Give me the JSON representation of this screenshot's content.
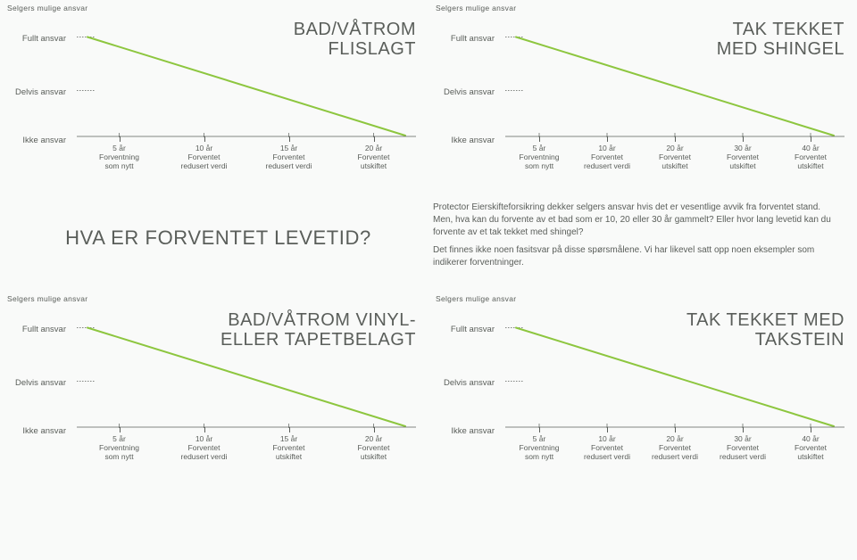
{
  "colors": {
    "background": "#f9faf9",
    "text": "#5a5e5a",
    "line": "#8dc63f",
    "dash": "#5a5e5a",
    "axis": "#5a5e5a"
  },
  "line_width": 2,
  "yAxis": {
    "header": "Selgers mulige ansvar",
    "levels": [
      "Fullt ansvar",
      "Delvis ansvar",
      "Ikke ansvar"
    ]
  },
  "mid": {
    "title": "HVA ER FORVENTET LEVETID?",
    "p1": "Protector Eierskifteforsikring dekker selgers ansvar hvis det er vesentlige avvik fra forventet stand. Men, hva kan du forvente av et bad som er 10, 20 eller 30 år gammelt? Eller hvor lang levetid kan du forvente av et tak tekket med shingel?",
    "p2": "Det finnes ikke noen fasitsvar på disse spørsmålene. Vi har likevel satt opp noen eksempler som indikerer forventninger."
  },
  "charts": [
    {
      "id": "chart1",
      "title": "BAD/VÅTROM\nFLISLAGT",
      "line": {
        "x1": 0,
        "y1": 0,
        "x2": 1,
        "y2": 1
      },
      "xticks": [
        {
          "pos": 0.125,
          "t1": "5 år",
          "t2": "Forventning",
          "t3": "som nytt"
        },
        {
          "pos": 0.375,
          "t1": "10 år",
          "t2": "Forventet",
          "t3": "redusert verdi"
        },
        {
          "pos": 0.625,
          "t1": "15 år",
          "t2": "Forventet",
          "t3": "redusert verdi"
        },
        {
          "pos": 0.875,
          "t1": "20 år",
          "t2": "Forventet",
          "t3": "utskiftet"
        }
      ]
    },
    {
      "id": "chart2",
      "title": "TAK TEKKET\nMED SHINGEL",
      "line": {
        "x1": 0,
        "y1": 0,
        "x2": 1,
        "y2": 1
      },
      "xticks": [
        {
          "pos": 0.1,
          "t1": "5 år",
          "t2": "Forventning",
          "t3": "som nytt"
        },
        {
          "pos": 0.3,
          "t1": "10 år",
          "t2": "Forventet",
          "t3": "redusert verdi"
        },
        {
          "pos": 0.5,
          "t1": "20 år",
          "t2": "Forventet",
          "t3": "utskiftet"
        },
        {
          "pos": 0.7,
          "t1": "30 år",
          "t2": "Forventet",
          "t3": "utskiftet"
        },
        {
          "pos": 0.9,
          "t1": "40 år",
          "t2": "Forventet",
          "t3": "utskiftet"
        }
      ]
    },
    {
      "id": "chart3",
      "title": "BAD/VÅTROM VINYL-\nELLER TAPETBELAGT",
      "line": {
        "x1": 0,
        "y1": 0,
        "x2": 1,
        "y2": 1
      },
      "xticks": [
        {
          "pos": 0.125,
          "t1": "5 år",
          "t2": "Forventning",
          "t3": "som nytt"
        },
        {
          "pos": 0.375,
          "t1": "10 år",
          "t2": "Forventet",
          "t3": "redusert verdi"
        },
        {
          "pos": 0.625,
          "t1": "15 år",
          "t2": "Forventet",
          "t3": "utskiftet"
        },
        {
          "pos": 0.875,
          "t1": "20 år",
          "t2": "Forventet",
          "t3": "utskiftet"
        }
      ]
    },
    {
      "id": "chart4",
      "title": "TAK TEKKET MED\nTAKSTEIN",
      "line": {
        "x1": 0,
        "y1": 0,
        "x2": 1,
        "y2": 1
      },
      "xticks": [
        {
          "pos": 0.1,
          "t1": "5 år",
          "t2": "Forventning",
          "t3": "som nytt"
        },
        {
          "pos": 0.3,
          "t1": "10 år",
          "t2": "Forventet",
          "t3": "redusert verdi"
        },
        {
          "pos": 0.5,
          "t1": "20 år",
          "t2": "Forventet",
          "t3": "redusert verdi"
        },
        {
          "pos": 0.7,
          "t1": "30 år",
          "t2": "Forventet",
          "t3": "redusert verdi"
        },
        {
          "pos": 0.9,
          "t1": "40 år",
          "t2": "Forventet",
          "t3": "utskiftet"
        }
      ]
    }
  ]
}
